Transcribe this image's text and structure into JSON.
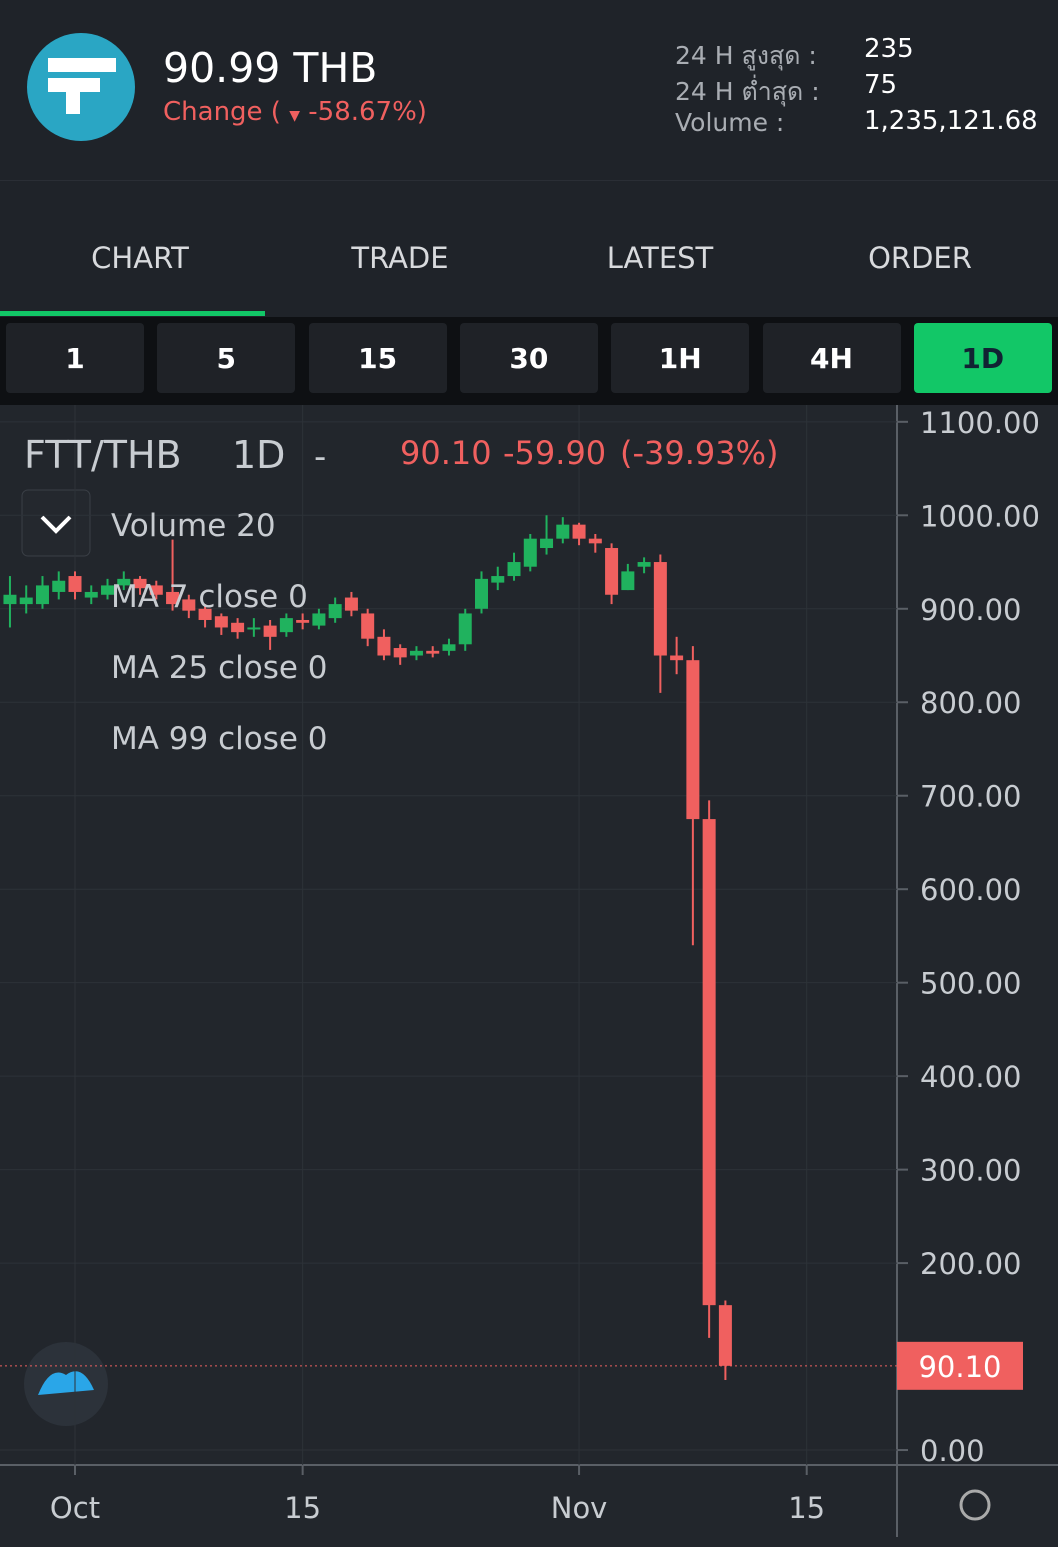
{
  "header": {
    "price": "90.99 THB",
    "change_label": "Change (",
    "change": "-58.67%)",
    "stats": [
      {
        "label": "24 H สูงสุด :",
        "value": "235"
      },
      {
        "label": "24 H ต่ำสุด :",
        "value": "75"
      },
      {
        "label": "Volume :",
        "value": "1,235,121.68"
      }
    ]
  },
  "tabs": [
    "CHART",
    "TRADE",
    "LATEST",
    "ORDER"
  ],
  "intervals": [
    "1",
    "5",
    "15",
    "30",
    "1H",
    "4H",
    "1D"
  ],
  "chart_data": {
    "type": "candlestick",
    "symbol": "FTT/THB",
    "interval": "1D",
    "separator": "-",
    "change": "-59.90",
    "change_pct": "(-39.93%)",
    "indicators": [
      "Volume 20",
      "MA 7 close 0",
      "MA 25 close 0",
      "MA 99 close 0"
    ],
    "last_price": {
      "value": 90.1,
      "label": "90.10"
    },
    "up_color": "#20b25e",
    "down_color": "#f0605f",
    "ylim": [
      -16,
      1118
    ],
    "yticks": [
      {
        "value": 0,
        "label": "0.00"
      },
      {
        "value": 200,
        "label": "200.00"
      },
      {
        "value": 300,
        "label": "300.00"
      },
      {
        "value": 400,
        "label": "400.00"
      },
      {
        "value": 500,
        "label": "500.00"
      },
      {
        "value": 600,
        "label": "600.00"
      },
      {
        "value": 700,
        "label": "700.00"
      },
      {
        "value": 800,
        "label": "800.00"
      },
      {
        "value": 900,
        "label": "900.00"
      },
      {
        "value": 1000,
        "label": "1000.00"
      },
      {
        "value": 1100,
        "label": "1100.00"
      }
    ],
    "xticks": [
      {
        "value": 4,
        "label": "Oct"
      },
      {
        "value": 18,
        "label": "15"
      },
      {
        "value": 35,
        "label": "Nov"
      },
      {
        "value": 49,
        "label": "15"
      }
    ],
    "open": [
      905,
      905,
      905,
      918,
      935,
      912,
      915,
      925,
      932,
      925,
      918,
      910,
      900,
      892,
      885,
      878,
      882,
      875,
      888,
      882,
      890,
      912,
      895,
      870,
      858,
      850,
      855,
      855,
      862,
      900,
      928,
      935,
      945,
      965,
      975,
      990,
      975,
      965,
      920,
      945,
      950,
      850,
      845,
      675,
      155
    ],
    "close": [
      915,
      912,
      925,
      930,
      918,
      918,
      925,
      932,
      922,
      915,
      905,
      898,
      888,
      880,
      875,
      880,
      870,
      890,
      885,
      895,
      905,
      898,
      868,
      850,
      848,
      855,
      852,
      862,
      895,
      932,
      935,
      950,
      975,
      975,
      990,
      975,
      970,
      915,
      940,
      950,
      850,
      845,
      675,
      155,
      90.1
    ],
    "high": [
      935,
      925,
      935,
      940,
      940,
      925,
      932,
      940,
      935,
      930,
      974,
      915,
      905,
      895,
      890,
      890,
      888,
      895,
      895,
      900,
      912,
      918,
      900,
      878,
      862,
      860,
      860,
      868,
      900,
      940,
      945,
      960,
      980,
      1000,
      998,
      992,
      980,
      970,
      948,
      955,
      958,
      870,
      860,
      695,
      160
    ],
    "low": [
      880,
      895,
      900,
      910,
      910,
      905,
      910,
      920,
      915,
      910,
      898,
      890,
      880,
      872,
      868,
      870,
      856,
      870,
      878,
      878,
      885,
      892,
      860,
      845,
      840,
      845,
      848,
      850,
      855,
      895,
      920,
      930,
      940,
      958,
      970,
      968,
      960,
      905,
      920,
      938,
      810,
      830,
      540,
      120,
      75
    ]
  }
}
